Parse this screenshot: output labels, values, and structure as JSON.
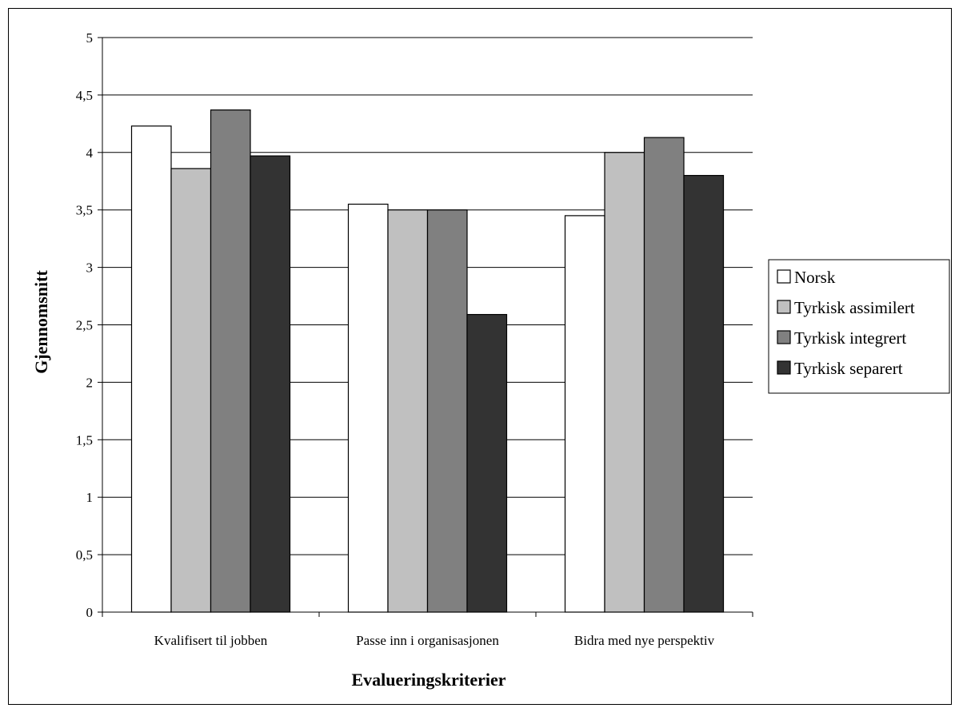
{
  "chart_data": {
    "type": "bar",
    "title": "",
    "xlabel": "Evalueringskriterier",
    "ylabel": "Gjennomsnitt",
    "ylim": [
      0,
      5
    ],
    "yticks": [
      "0",
      "0,5",
      "1",
      "1,5",
      "2",
      "2,5",
      "3",
      "3,5",
      "4",
      "4,5",
      "5"
    ],
    "categories": [
      "Kvalifisert til jobben",
      "Passe inn i organisasjonen",
      "Bidra med nye perspektiv"
    ],
    "series": [
      {
        "name": "Norsk",
        "color": "#ffffff",
        "values": [
          4.23,
          3.55,
          3.45
        ]
      },
      {
        "name": "Tyrkisk assimilert",
        "color": "#c0c0c0",
        "values": [
          3.86,
          3.5,
          4.0
        ]
      },
      {
        "name": "Tyrkisk integrert",
        "color": "#808080",
        "values": [
          4.37,
          3.5,
          4.13
        ]
      },
      {
        "name": "Tyrkisk separert",
        "color": "#333333",
        "values": [
          3.97,
          2.59,
          3.8
        ]
      }
    ],
    "grid": true,
    "legend_position": "right"
  }
}
